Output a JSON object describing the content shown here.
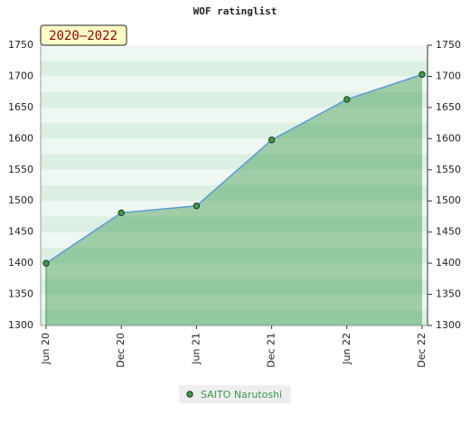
{
  "chart_data": {
    "type": "line",
    "title": "WOF ratinglist",
    "annotation": "2020–2022",
    "categories": [
      "Jun 20",
      "Dec 20",
      "Jun 21",
      "Dec 21",
      "Jun 22",
      "Dec 22"
    ],
    "series": [
      {
        "name": "SAITO Narutoshi",
        "color": "#3c9a50",
        "line_color": "#5b9bd5",
        "values": [
          1400,
          1481,
          1492,
          1598,
          1663,
          1703
        ]
      }
    ],
    "ylim": [
      1300,
      1750
    ],
    "yticks": [
      1300,
      1350,
      1400,
      1450,
      1500,
      1550,
      1600,
      1650,
      1700,
      1750
    ],
    "grid": true,
    "legend": "bottom"
  }
}
